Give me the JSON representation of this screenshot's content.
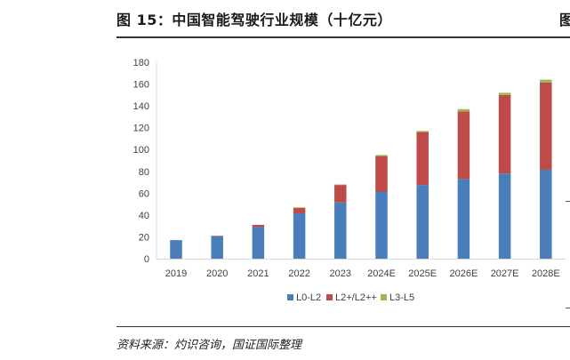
{
  "header": {
    "title": "图 15：中国智能驾驶行业规模（十亿元）",
    "title_right_fragment": "图"
  },
  "footer": {
    "source": "资料来源：灼识咨询，国证国际整理"
  },
  "chart_data": {
    "type": "bar",
    "stacked": true,
    "categories": [
      "2019",
      "2020",
      "2021",
      "2022",
      "2023",
      "2024E",
      "2025E",
      "2026E",
      "2027E",
      "2028E"
    ],
    "series": [
      {
        "name": "L0-L2",
        "color": "#4a7ebb",
        "values": [
          17,
          20.5,
          29,
          41.5,
          51.5,
          61.5,
          67.5,
          73,
          78,
          81.5
        ]
      },
      {
        "name": "L2+/L2++",
        "color": "#be4b48",
        "values": [
          0,
          0.5,
          2,
          5,
          16,
          32.5,
          48.5,
          62,
          72,
          80
        ]
      },
      {
        "name": "L3-L5",
        "color": "#98b954",
        "values": [
          0,
          0,
          0,
          0.5,
          0.5,
          1,
          1,
          2,
          2,
          2.5
        ]
      }
    ],
    "ylim": [
      0,
      180
    ],
    "yticks": [
      0,
      20,
      40,
      60,
      80,
      100,
      120,
      140,
      160,
      180
    ],
    "grid": false,
    "legend": "bottom",
    "title": "",
    "xlabel": "",
    "ylabel": ""
  }
}
